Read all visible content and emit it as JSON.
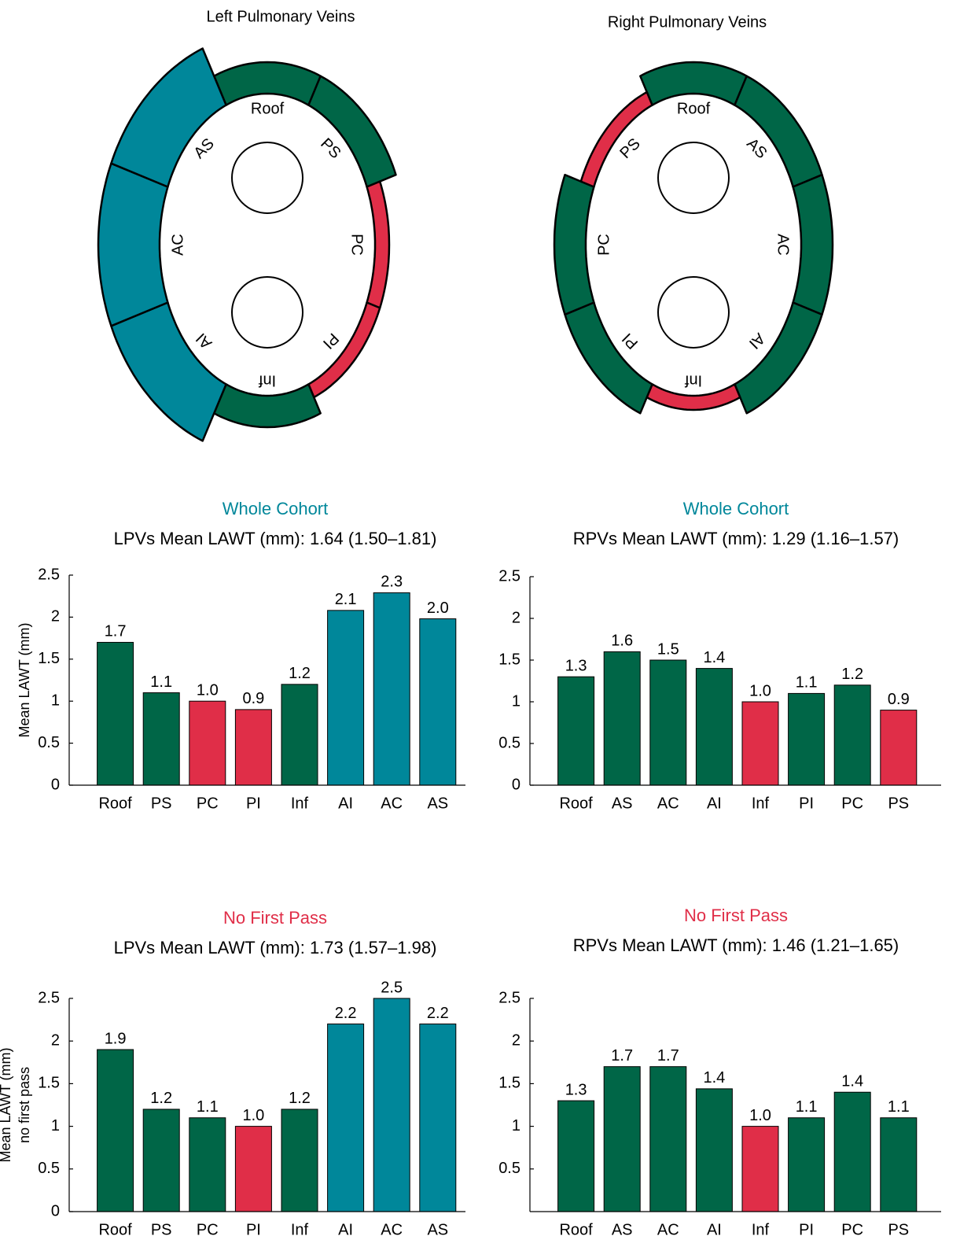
{
  "diagrams": [
    {
      "title": "Left Pulmonary Veins",
      "segments": [
        {
          "label": "Roof",
          "color": "#006647"
        },
        {
          "label": "PS",
          "color": "#006647"
        },
        {
          "label": "PC",
          "color": "#e02e48"
        },
        {
          "label": "PI",
          "color": "#e02e48"
        },
        {
          "label": "Inf",
          "color": "#006647"
        },
        {
          "label": "AI",
          "color": "#00879a"
        },
        {
          "label": "AC",
          "color": "#00879a"
        },
        {
          "label": "AS",
          "color": "#00879a"
        }
      ]
    },
    {
      "title": "Right Pulmonary Veins",
      "segments": [
        {
          "label": "Roof",
          "color": "#006647"
        },
        {
          "label": "AS",
          "color": "#006647"
        },
        {
          "label": "AC",
          "color": "#006647"
        },
        {
          "label": "AI",
          "color": "#006647"
        },
        {
          "label": "Inf",
          "color": "#e02e48"
        },
        {
          "label": "PI",
          "color": "#006647"
        },
        {
          "label": "PC",
          "color": "#006647"
        },
        {
          "label": "PS",
          "color": "#e02e48"
        }
      ]
    }
  ],
  "chart_data": [
    {
      "type": "bar",
      "title": "Whole Cohort",
      "title_color": "#00879a",
      "subtitle": "LPVs Mean LAWT (mm): 1.64 (1.50–1.81)",
      "ylabel": [
        "Mean LAWT (mm)"
      ],
      "categories": [
        "Roof",
        "PS",
        "PC",
        "PI",
        "Inf",
        "AI",
        "AC",
        "AS"
      ],
      "values": [
        1.7,
        1.1,
        1.0,
        0.9,
        1.2,
        2.08,
        2.29,
        1.98
      ],
      "value_labels": [
        "1.7",
        "1.1",
        "1.0",
        "0.9",
        "1.2",
        "2.1",
        "2.3",
        "2.0"
      ],
      "colors": [
        "#006647",
        "#006647",
        "#e02e48",
        "#e02e48",
        "#006647",
        "#00879a",
        "#00879a",
        "#00879a"
      ],
      "ylim": [
        0,
        2.5
      ],
      "yticks": [
        0,
        0.5,
        1,
        1.5,
        2,
        2.5
      ]
    },
    {
      "type": "bar",
      "title": "Whole Cohort",
      "title_color": "#00879a",
      "subtitle": "RPVs Mean LAWT (mm): 1.29 (1.16–1.57)",
      "categories": [
        "Roof",
        "AS",
        "AC",
        "AI",
        "Inf",
        "PI",
        "PC",
        "PS"
      ],
      "values": [
        1.3,
        1.6,
        1.5,
        1.4,
        1.0,
        1.1,
        1.2,
        0.9
      ],
      "value_labels": [
        "1.3",
        "1.6",
        "1.5",
        "1.4",
        "1.0",
        "1.1",
        "1.2",
        "0.9"
      ],
      "colors": [
        "#006647",
        "#006647",
        "#006647",
        "#006647",
        "#e02e48",
        "#006647",
        "#006647",
        "#e02e48"
      ],
      "ylim": [
        0,
        2.5
      ],
      "yticks": [
        0,
        0.5,
        1,
        1.5,
        2,
        2.5
      ]
    },
    {
      "type": "bar",
      "title": "No First Pass",
      "title_color": "#e02e48",
      "subtitle": "LPVs Mean LAWT (mm): 1.73 (1.57–1.98)",
      "ylabel": [
        "Mean LAWT (mm)",
        "no first pass"
      ],
      "categories": [
        "Roof",
        "PS",
        "PC",
        "PI",
        "Inf",
        "AI",
        "AC",
        "AS"
      ],
      "values": [
        1.9,
        1.2,
        1.1,
        1.0,
        1.2,
        2.2,
        2.5,
        2.2
      ],
      "value_labels": [
        "1.9",
        "1.2",
        "1.1",
        "1.0",
        "1.2",
        "2.2",
        "2.5",
        "2.2"
      ],
      "colors": [
        "#006647",
        "#006647",
        "#006647",
        "#e02e48",
        "#006647",
        "#00879a",
        "#00879a",
        "#00879a"
      ],
      "ylim": [
        0,
        2.5
      ],
      "yticks": [
        0,
        0.5,
        1,
        1.5,
        2,
        2.5
      ]
    },
    {
      "type": "bar",
      "title": "No First Pass",
      "title_color": "#e02e48",
      "subtitle": "RPVs Mean LAWT (mm): 1.46 (1.21–1.65)",
      "categories": [
        "Roof",
        "AS",
        "AC",
        "AI",
        "Inf",
        "PI",
        "PC",
        "PS"
      ],
      "values": [
        1.3,
        1.7,
        1.7,
        1.44,
        1.0,
        1.1,
        1.4,
        1.1
      ],
      "value_labels": [
        "1.3",
        "1.7",
        "1.7",
        "1.4",
        "1.0",
        "1.1",
        "1.4",
        "1.1"
      ],
      "colors": [
        "#006647",
        "#006647",
        "#006647",
        "#006647",
        "#e02e48",
        "#006647",
        "#006647",
        "#006647"
      ],
      "ylim": [
        0,
        2.5
      ],
      "yticks": [
        0.5,
        1,
        1.5,
        2,
        2.5
      ]
    }
  ]
}
